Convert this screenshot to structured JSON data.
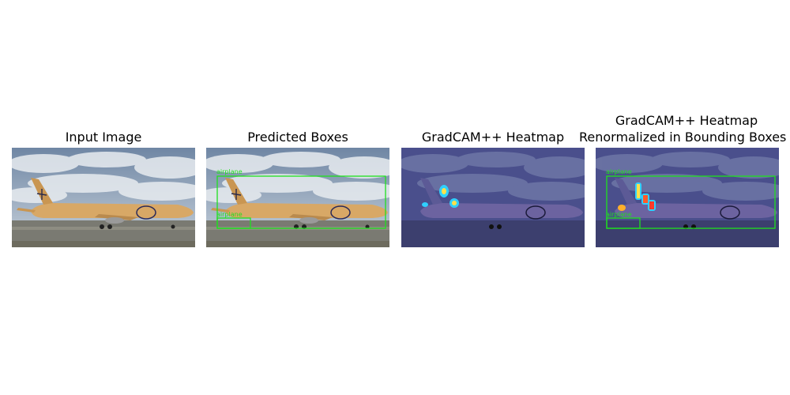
{
  "figure": {
    "panels": [
      {
        "title": "Input Image",
        "overlay": "none"
      },
      {
        "title": "Predicted Boxes",
        "overlay": "boxes"
      },
      {
        "title": "GradCAM++ Heatmap",
        "overlay": "heatmap"
      },
      {
        "title_lines": [
          "GradCAM++ Heatmap",
          "Renormalized in Bounding Boxes"
        ],
        "overlay": "heatmap+boxes"
      }
    ],
    "detections": [
      {
        "label": "airplane"
      },
      {
        "label": "airplane"
      }
    ],
    "colors": {
      "box": "#1fe01f",
      "sky_top": "#7f93ad",
      "cloud": "#e8ecf0",
      "fuselage": "#d8a866",
      "ground": "#7a7a72",
      "heat_tint": "#2a2f8f"
    }
  }
}
